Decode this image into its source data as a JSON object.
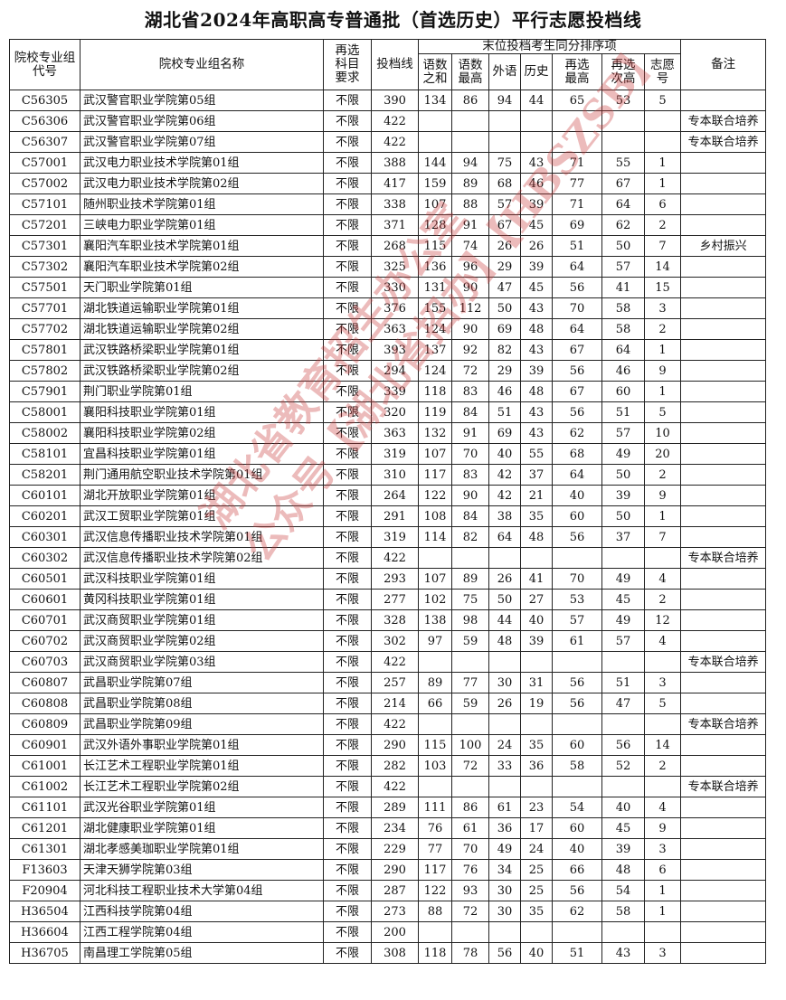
{
  "title": "湖北省2024年高职高专普通批（首选历史）平行志愿投档线",
  "headers": {
    "code": "院校专业组代号",
    "name": "院校专业组名称",
    "requirement": "再选科目要求",
    "line": "投档线",
    "tiebreak_group": "末位投档考生同分排序项",
    "sub": [
      "语数之和",
      "语数最高",
      "外语",
      "历史",
      "再选最高",
      "再选次高",
      "志愿号"
    ],
    "note": "备注"
  },
  "watermark": [
    "湖北省教育招生办公室",
    "公众号【湖北省招办】【HBSZSB】"
  ],
  "rows": [
    [
      "C56305",
      "武汉警官职业学院第05组",
      "不限",
      "390",
      "134",
      "86",
      "94",
      "44",
      "65",
      "53",
      "5",
      ""
    ],
    [
      "C56306",
      "武汉警官职业学院第06组",
      "不限",
      "422",
      "",
      "",
      "",
      "",
      "",
      "",
      "",
      "专本联合培养"
    ],
    [
      "C56307",
      "武汉警官职业学院第07组",
      "不限",
      "422",
      "",
      "",
      "",
      "",
      "",
      "",
      "",
      "专本联合培养"
    ],
    [
      "C57001",
      "武汉电力职业技术学院第01组",
      "不限",
      "388",
      "144",
      "94",
      "75",
      "43",
      "71",
      "55",
      "1",
      ""
    ],
    [
      "C57002",
      "武汉电力职业技术学院第02组",
      "不限",
      "417",
      "159",
      "89",
      "68",
      "46",
      "77",
      "67",
      "1",
      ""
    ],
    [
      "C57101",
      "随州职业技术学院第01组",
      "不限",
      "338",
      "107",
      "88",
      "57",
      "39",
      "71",
      "64",
      "6",
      ""
    ],
    [
      "C57201",
      "三峡电力职业学院第01组",
      "不限",
      "371",
      "128",
      "91",
      "67",
      "45",
      "69",
      "62",
      "2",
      ""
    ],
    [
      "C57301",
      "襄阳汽车职业技术学院第01组",
      "不限",
      "268",
      "115",
      "74",
      "26",
      "26",
      "51",
      "50",
      "7",
      "乡村振兴"
    ],
    [
      "C57302",
      "襄阳汽车职业技术学院第02组",
      "不限",
      "325",
      "136",
      "96",
      "29",
      "39",
      "64",
      "57",
      "14",
      ""
    ],
    [
      "C57501",
      "天门职业学院第01组",
      "不限",
      "330",
      "131",
      "90",
      "47",
      "45",
      "56",
      "41",
      "15",
      ""
    ],
    [
      "C57701",
      "湖北铁道运输职业学院第01组",
      "不限",
      "376",
      "155",
      "112",
      "50",
      "43",
      "70",
      "58",
      "3",
      ""
    ],
    [
      "C57702",
      "湖北铁道运输职业学院第02组",
      "不限",
      "363",
      "124",
      "90",
      "69",
      "48",
      "64",
      "58",
      "2",
      ""
    ],
    [
      "C57801",
      "武汉铁路桥梁职业学院第01组",
      "不限",
      "393",
      "137",
      "92",
      "82",
      "43",
      "67",
      "64",
      "1",
      ""
    ],
    [
      "C57802",
      "武汉铁路桥梁职业学院第02组",
      "不限",
      "294",
      "124",
      "72",
      "29",
      "39",
      "56",
      "46",
      "9",
      ""
    ],
    [
      "C57901",
      "荆门职业学院第01组",
      "不限",
      "339",
      "118",
      "83",
      "46",
      "48",
      "67",
      "60",
      "1",
      ""
    ],
    [
      "C58001",
      "襄阳科技职业学院第01组",
      "不限",
      "320",
      "119",
      "84",
      "51",
      "43",
      "56",
      "51",
      "5",
      ""
    ],
    [
      "C58002",
      "襄阳科技职业学院第02组",
      "不限",
      "363",
      "132",
      "91",
      "69",
      "43",
      "62",
      "57",
      "10",
      ""
    ],
    [
      "C58101",
      "宜昌科技职业学院第01组",
      "不限",
      "319",
      "107",
      "70",
      "40",
      "55",
      "68",
      "49",
      "20",
      ""
    ],
    [
      "C58201",
      "荆门通用航空职业技术学院第01组",
      "不限",
      "310",
      "117",
      "83",
      "42",
      "37",
      "64",
      "50",
      "2",
      ""
    ],
    [
      "C60101",
      "湖北开放职业学院第01组",
      "不限",
      "264",
      "122",
      "90",
      "42",
      "21",
      "40",
      "39",
      "9",
      ""
    ],
    [
      "C60201",
      "武汉工贸职业学院第01组",
      "不限",
      "291",
      "108",
      "84",
      "38",
      "35",
      "60",
      "50",
      "1",
      ""
    ],
    [
      "C60301",
      "武汉信息传播职业技术学院第01组",
      "不限",
      "319",
      "114",
      "82",
      "64",
      "48",
      "56",
      "37",
      "7",
      ""
    ],
    [
      "C60302",
      "武汉信息传播职业技术学院第02组",
      "不限",
      "422",
      "",
      "",
      "",
      "",
      "",
      "",
      "",
      "专本联合培养"
    ],
    [
      "C60501",
      "武汉科技职业学院第01组",
      "不限",
      "293",
      "107",
      "89",
      "26",
      "41",
      "70",
      "49",
      "4",
      ""
    ],
    [
      "C60601",
      "黄冈科技职业学院第01组",
      "不限",
      "277",
      "102",
      "75",
      "50",
      "27",
      "53",
      "45",
      "2",
      ""
    ],
    [
      "C60701",
      "武汉商贸职业学院第01组",
      "不限",
      "328",
      "138",
      "98",
      "44",
      "40",
      "57",
      "49",
      "12",
      ""
    ],
    [
      "C60702",
      "武汉商贸职业学院第02组",
      "不限",
      "302",
      "97",
      "59",
      "48",
      "39",
      "61",
      "57",
      "4",
      ""
    ],
    [
      "C60703",
      "武汉商贸职业学院第03组",
      "不限",
      "422",
      "",
      "",
      "",
      "",
      "",
      "",
      "",
      "专本联合培养"
    ],
    [
      "C60807",
      "武昌职业学院第07组",
      "不限",
      "257",
      "89",
      "77",
      "30",
      "31",
      "56",
      "51",
      "3",
      ""
    ],
    [
      "C60808",
      "武昌职业学院第08组",
      "不限",
      "214",
      "66",
      "59",
      "26",
      "19",
      "56",
      "47",
      "5",
      ""
    ],
    [
      "C60809",
      "武昌职业学院第09组",
      "不限",
      "422",
      "",
      "",
      "",
      "",
      "",
      "",
      "",
      "专本联合培养"
    ],
    [
      "C60901",
      "武汉外语外事职业学院第01组",
      "不限",
      "290",
      "115",
      "100",
      "24",
      "35",
      "60",
      "56",
      "14",
      ""
    ],
    [
      "C61001",
      "长江艺术工程职业学院第01组",
      "不限",
      "282",
      "103",
      "72",
      "33",
      "36",
      "58",
      "52",
      "2",
      ""
    ],
    [
      "C61002",
      "长江艺术工程职业学院第02组",
      "不限",
      "422",
      "",
      "",
      "",
      "",
      "",
      "",
      "",
      "专本联合培养"
    ],
    [
      "C61101",
      "武汉光谷职业学院第01组",
      "不限",
      "289",
      "111",
      "86",
      "61",
      "23",
      "54",
      "40",
      "4",
      ""
    ],
    [
      "C61201",
      "湖北健康职业学院第01组",
      "不限",
      "234",
      "76",
      "61",
      "36",
      "17",
      "60",
      "45",
      "9",
      ""
    ],
    [
      "C61301",
      "湖北孝感美珈职业学院第01组",
      "不限",
      "229",
      "77",
      "70",
      "49",
      "24",
      "40",
      "39",
      "3",
      ""
    ],
    [
      "F13603",
      "天津天狮学院第03组",
      "不限",
      "290",
      "117",
      "76",
      "34",
      "25",
      "66",
      "48",
      "6",
      ""
    ],
    [
      "F20904",
      "河北科技工程职业技术大学第04组",
      "不限",
      "287",
      "122",
      "93",
      "30",
      "25",
      "56",
      "54",
      "1",
      ""
    ],
    [
      "H36504",
      "江西科技学院第04组",
      "不限",
      "273",
      "88",
      "72",
      "30",
      "35",
      "62",
      "58",
      "1",
      ""
    ],
    [
      "H36604",
      "江西工程学院第04组",
      "不限",
      "200",
      "",
      "",
      "",
      "",
      "",
      "",
      "",
      ""
    ],
    [
      "H36705",
      "南昌理工学院第05组",
      "不限",
      "308",
      "118",
      "78",
      "56",
      "40",
      "51",
      "43",
      "3",
      ""
    ]
  ]
}
